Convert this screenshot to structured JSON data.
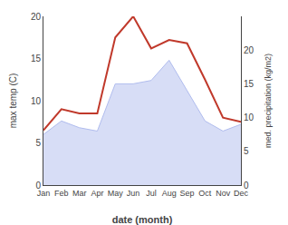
{
  "chart_data": {
    "type": "line",
    "categories": [
      "Jan",
      "Feb",
      "Mar",
      "Apr",
      "May",
      "Jun",
      "Jul",
      "Aug",
      "Sep",
      "Oct",
      "Nov",
      "Dec"
    ],
    "xlabel": "date (month)",
    "ylabel": "max temp (C)",
    "y2label": "med. precipitation (kg/m2)",
    "series": [
      {
        "type": "area",
        "axis": "y2",
        "color": "#b0bcee",
        "values": [
          7.5,
          9.5,
          8.5,
          8.0,
          15.0,
          15.0,
          15.5,
          18.5,
          14.0,
          9.5,
          8.0,
          9.0
        ]
      },
      {
        "type": "line",
        "color": "#c0392b",
        "values": [
          6.5,
          9.0,
          8.5,
          8.5,
          17.5,
          20.0,
          16.2,
          17.2,
          16.8,
          12.5,
          8.0,
          7.5
        ]
      }
    ],
    "ylim": [
      0,
      20
    ],
    "yticks": [
      0,
      5,
      10,
      15,
      20
    ],
    "y2lim": [
      0,
      25
    ],
    "y2ticks": [
      0,
      5,
      10,
      15,
      20
    ],
    "grid": false
  }
}
